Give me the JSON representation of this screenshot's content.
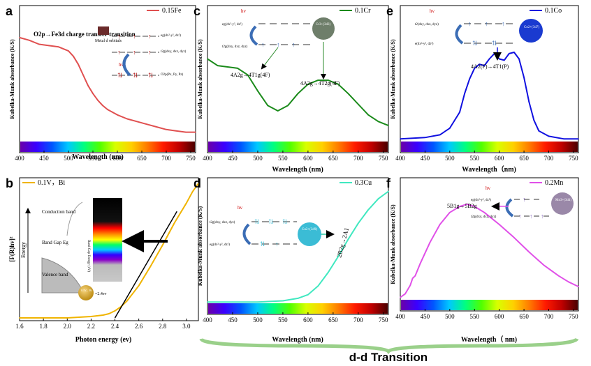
{
  "footer_label": "d-d Transition",
  "spectrum_colors": [
    "#6a00a8",
    "#3a00ff",
    "#0055ff",
    "#00c8ff",
    "#00ff80",
    "#50ff00",
    "#d8ff00",
    "#ffd000",
    "#ff7a00",
    "#ff1a00",
    "#c00000",
    "#4a0000"
  ],
  "chart_data": [
    {
      "id": "a",
      "type": "line",
      "panel_letter": "a",
      "legend": "0.15Fe",
      "color": "#e05050",
      "xlabel": "Wavelength (nm)",
      "ylabel": "Kubelka-Munk absorbance (K/S)",
      "xlim": [
        400,
        760
      ],
      "ylim": [
        0,
        1
      ],
      "xticks": [
        "400",
        "450",
        "500",
        "550",
        "600",
        "650",
        "700",
        "750"
      ],
      "x": [
        400,
        420,
        440,
        460,
        480,
        500,
        510,
        520,
        530,
        540,
        550,
        560,
        570,
        580,
        600,
        620,
        640,
        660,
        680,
        700,
        720,
        740,
        760
      ],
      "y": [
        0.78,
        0.76,
        0.73,
        0.72,
        0.71,
        0.68,
        0.64,
        0.58,
        0.5,
        0.42,
        0.36,
        0.31,
        0.27,
        0.24,
        0.2,
        0.17,
        0.15,
        0.13,
        0.11,
        0.09,
        0.08,
        0.07,
        0.07
      ],
      "annotations": {
        "charge_transfer": "O2p→Fe3d charge transfer transition",
        "metal_d": "Metal d orbitals",
        "hv": "hv",
        "eg": "eg(dx²-y², dz²)",
        "t2g": "t2g(dxy, dxz, dyz)",
        "o2p": "O2p(Px, Py, Pz)"
      }
    },
    {
      "id": "c",
      "type": "line",
      "panel_letter": "c",
      "legend": "0.1Cr",
      "color": "#1a8a1a",
      "xlabel": "Wavelength (nm)",
      "ylabel": "Kubelka-Munk absorbance (K/S)",
      "xlim": [
        400,
        760
      ],
      "ylim": [
        0,
        1
      ],
      "xticks": [
        "400",
        "450",
        "500",
        "550",
        "600",
        "650",
        "700",
        "750"
      ],
      "x": [
        400,
        420,
        440,
        460,
        480,
        500,
        520,
        540,
        560,
        580,
        600,
        620,
        640,
        660,
        680,
        700,
        720,
        740,
        760
      ],
      "y": [
        0.62,
        0.57,
        0.56,
        0.55,
        0.5,
        0.38,
        0.27,
        0.23,
        0.27,
        0.36,
        0.43,
        0.46,
        0.46,
        0.43,
        0.36,
        0.28,
        0.2,
        0.15,
        0.12
      ],
      "annotations": {
        "band1": "4A2g→4T1g(4F)",
        "band2": "4A2g→4T2g(4F)",
        "hv": "hv",
        "eg": "eg(dx²-y², dz²)",
        "t2g": "t2g(dxy, dxz, dyz)",
        "ion": "Cr3+(3d3)"
      }
    },
    {
      "id": "e",
      "type": "line",
      "panel_letter": "e",
      "legend": "0.1Co",
      "color": "#1010e0",
      "xlabel": "Wavelength（nm)",
      "ylabel": "Kubelka-Munk absorbance (K/S)",
      "xlim": [
        400,
        760
      ],
      "ylim": [
        0,
        1
      ],
      "xticks": [
        "400",
        "450",
        "500",
        "550",
        "600",
        "650",
        "700",
        "750"
      ],
      "x": [
        400,
        450,
        480,
        500,
        520,
        530,
        540,
        550,
        560,
        570,
        580,
        590,
        600,
        610,
        620,
        630,
        640,
        650,
        660,
        670,
        680,
        700,
        730,
        760
      ],
      "y": [
        0.02,
        0.03,
        0.05,
        0.1,
        0.22,
        0.36,
        0.47,
        0.55,
        0.58,
        0.57,
        0.62,
        0.66,
        0.62,
        0.61,
        0.66,
        0.67,
        0.62,
        0.48,
        0.3,
        0.16,
        0.08,
        0.04,
        0.02,
        0.02
      ],
      "annotations": {
        "band": "4A2(F)→4T1(P)",
        "hv": "hv",
        "t2": "t2(dxy, dxz, dyz)",
        "e": "e(dx²-y², dz²)",
        "ion": "Co2+(3d7)"
      }
    },
    {
      "id": "b",
      "type": "line",
      "panel_letter": "b",
      "legend": "0.1V，Bi",
      "color": "#f0b400",
      "xlabel": "Photon energy (ev)",
      "ylabel": "[F(R)hv]²",
      "xlim": [
        1.6,
        3.1
      ],
      "ylim": [
        0,
        1
      ],
      "xticks": [
        "1.6",
        "1.8",
        "2.0",
        "2.2",
        "2.4",
        "2.6",
        "2.8",
        "3.0"
      ],
      "x": [
        1.6,
        1.8,
        2.0,
        2.2,
        2.3,
        2.35,
        2.4,
        2.45,
        2.5,
        2.6,
        2.7,
        2.8,
        2.9,
        3.0,
        3.05,
        3.1
      ],
      "y": [
        0.02,
        0.02,
        0.02,
        0.03,
        0.04,
        0.05,
        0.07,
        0.1,
        0.14,
        0.25,
        0.39,
        0.54,
        0.7,
        0.84,
        0.92,
        0.98
      ],
      "annotations": {
        "conduction": "Conduction band",
        "valence": "Valence band",
        "gap": "Band Gap Eg",
        "energy": "Energy",
        "bandgap_value": "=2.4ev",
        "sample": "0.1V，Bi",
        "scale": "Band Gap Energy (eV)"
      }
    },
    {
      "id": "d",
      "type": "line",
      "panel_letter": "d",
      "legend": "0.3Cu",
      "color": "#40e8c0",
      "xlabel": "Wavelength (nm)",
      "ylabel": "Kubelka-Munk absorbance (K/S)",
      "xlim": [
        400,
        760
      ],
      "ylim": [
        0,
        1
      ],
      "xticks": [
        "400",
        "450",
        "500",
        "550",
        "600",
        "650",
        "700",
        "750"
      ],
      "x": [
        400,
        450,
        500,
        550,
        580,
        600,
        620,
        640,
        660,
        680,
        700,
        720,
        740,
        760
      ],
      "y": [
        0.01,
        0.01,
        0.01,
        0.02,
        0.04,
        0.07,
        0.14,
        0.25,
        0.38,
        0.52,
        0.65,
        0.76,
        0.85,
        0.91
      ],
      "annotations": {
        "band": "2B2g→2A1",
        "hv": "hv",
        "t2g": "t2g(dxy, dxz, dyz)",
        "eg": "eg(dx²-y², dz²)",
        "ion": "Cu2+(3d9)"
      }
    },
    {
      "id": "f",
      "type": "line",
      "panel_letter": "f",
      "legend": "0.2Mn",
      "color": "#e050e8",
      "xlabel": "Wavelength（ nm)",
      "ylabel": "Kubelka-Munk absorbance (K/S)",
      "xlim": [
        400,
        760
      ],
      "ylim": [
        0,
        1
      ],
      "xticks": [
        "400",
        "450",
        "500",
        "550",
        "600",
        "650",
        "700",
        "750"
      ],
      "x": [
        400,
        410,
        420,
        425,
        430,
        440,
        460,
        480,
        500,
        520,
        535,
        550,
        570,
        600,
        630,
        660,
        690,
        720,
        740,
        760
      ],
      "y": [
        0.02,
        0.05,
        0.12,
        0.18,
        0.2,
        0.3,
        0.48,
        0.63,
        0.73,
        0.78,
        0.8,
        0.78,
        0.73,
        0.63,
        0.52,
        0.4,
        0.29,
        0.2,
        0.15,
        0.11
      ],
      "annotations": {
        "band": "5B1g→5B2g",
        "hv": "hv",
        "eg": "eg(dx²-y², dz²)",
        "t2g": "t2g(dxy, dxz, dyz)",
        "ion": "Mn3+(3d4)"
      }
    }
  ]
}
